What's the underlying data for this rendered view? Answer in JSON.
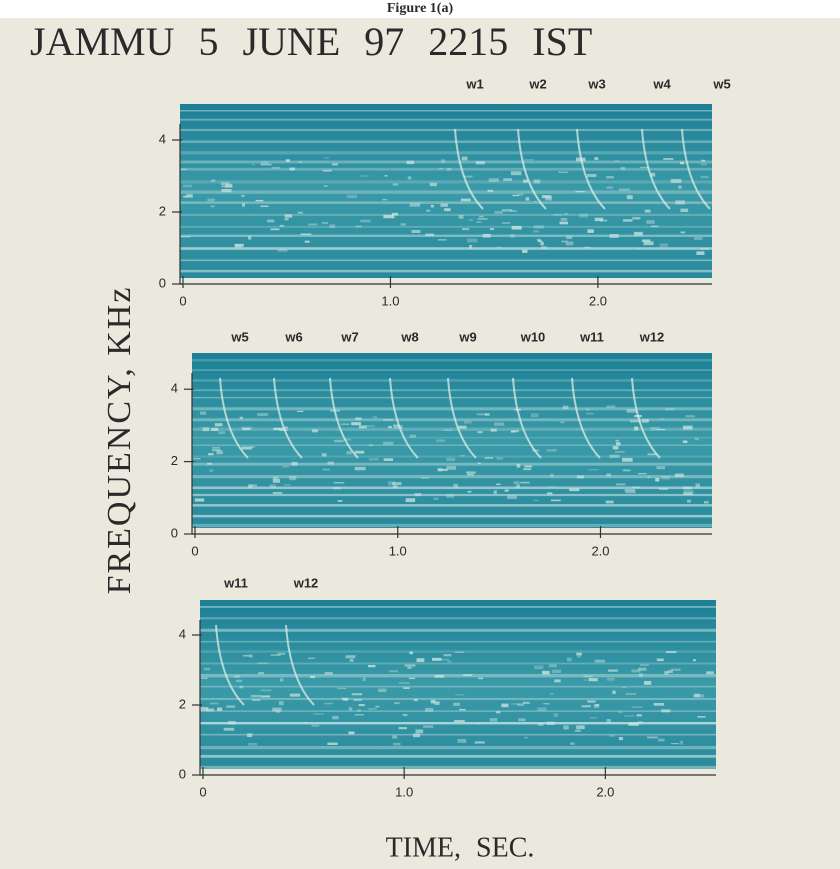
{
  "caption": "Figure 1(a)",
  "title": "JAMMU 5 JUNE 97 2215 IST",
  "ylabel": "FREQUENCY, KHz",
  "xlabel": "TIME, SEC.",
  "chart_data": [
    {
      "type": "spectrogram",
      "annotations": [
        "w1",
        "w2",
        "w3",
        "w4",
        "w5"
      ],
      "xlim": [
        0,
        2.55
      ],
      "ylim": [
        0,
        5
      ],
      "xticks": [
        0,
        {
          "value": 1,
          "label": "1.0"
        },
        {
          "value": 2,
          "label": "2.0"
        }
      ],
      "yticks": [
        0,
        2,
        4
      ]
    },
    {
      "type": "spectrogram",
      "annotations": [
        "w5",
        "w6",
        "w7",
        "w8",
        "w9",
        "w10",
        "w11",
        "w12"
      ],
      "xlim": [
        0,
        2.55
      ],
      "ylim": [
        0,
        5
      ],
      "xticks": [
        0,
        {
          "value": 1,
          "label": "1.0"
        },
        {
          "value": 2,
          "label": "2.0"
        }
      ],
      "yticks": [
        0,
        2,
        4
      ]
    },
    {
      "type": "spectrogram",
      "annotations": [
        "w11",
        "w12"
      ],
      "xlim": [
        0,
        2.55
      ],
      "ylim": [
        0,
        5
      ],
      "xticks": [
        0,
        {
          "value": 1,
          "label": "1.0"
        },
        {
          "value": 2,
          "label": "2.0"
        }
      ],
      "yticks": [
        0,
        2,
        4
      ]
    }
  ]
}
